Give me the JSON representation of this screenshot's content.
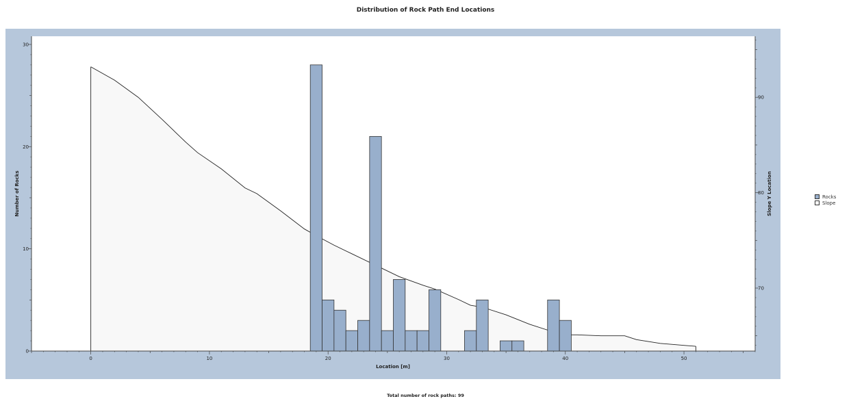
{
  "chart_data": {
    "type": "bar",
    "title": "Distribution of Rock Path End Locations",
    "xlabel": "Location [m]",
    "ylabel": "Number of Rocks",
    "y2label": "Slope Y Location",
    "xlim": [
      -5,
      56
    ],
    "ylim": [
      0,
      30.8
    ],
    "y2lim": [
      63.4,
      96.4
    ],
    "xticks": [
      0,
      10,
      20,
      30,
      40,
      50
    ],
    "yticks": [
      0,
      10,
      20,
      30
    ],
    "y2ticks": [
      70,
      80,
      90
    ],
    "bin_width": 1,
    "series": [
      {
        "name": "Rocks",
        "type": "bar",
        "color": "#98afcc",
        "x": [
          19,
          20,
          21,
          22,
          23,
          24,
          25,
          26,
          27,
          28,
          29,
          32,
          33,
          35,
          36,
          39,
          40
        ],
        "values": [
          28,
          5,
          4,
          2,
          3,
          21,
          2,
          7,
          2,
          2,
          6,
          2,
          5,
          1,
          1,
          5,
          3
        ]
      },
      {
        "name": "Slope",
        "type": "area",
        "color": "#f8f8f8",
        "axis": "right",
        "x": [
          0,
          2,
          4,
          6,
          8,
          9,
          11,
          13,
          14,
          16,
          18,
          19,
          20.5,
          22,
          24,
          26,
          28,
          29,
          31,
          32,
          33,
          35,
          37,
          39,
          40,
          41,
          43,
          44,
          45,
          46,
          48,
          50,
          51
        ],
        "values": [
          93.2,
          91.8,
          90.0,
          87.7,
          85.3,
          84.2,
          82.5,
          80.5,
          79.9,
          78.1,
          76.2,
          75.5,
          74.5,
          73.6,
          72.4,
          71.2,
          70.3,
          69.9,
          68.8,
          68.2,
          68.0,
          67.2,
          66.2,
          65.4,
          65.1,
          65.1,
          65.0,
          65.0,
          65.0,
          64.6,
          64.2,
          64.0,
          63.9
        ]
      }
    ],
    "legend": {
      "position": "right",
      "entries": [
        "Rocks",
        "Slope"
      ]
    },
    "grid": false,
    "footer": "Total number of rock paths:  99"
  },
  "colors": {
    "frame": "#b6c7db",
    "bar": "#98afcc",
    "slope_fill": "#f8f8f8"
  }
}
